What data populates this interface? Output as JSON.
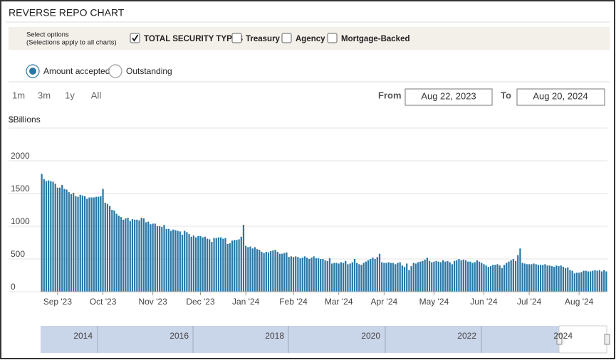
{
  "header": {
    "title": "REVERSE REPO CHART"
  },
  "options": {
    "prompt": "Select options",
    "note": "(Selections apply to all charts)",
    "checkboxes": [
      {
        "label": "TOTAL SECURITY TYPES",
        "checked": true
      },
      {
        "label": "Treasury",
        "checked": false
      },
      {
        "label": "Agency",
        "checked": false
      },
      {
        "label": "Mortgage-Backed",
        "checked": false
      }
    ]
  },
  "radios": [
    {
      "label": "Amount accepted",
      "selected": true
    },
    {
      "label": "Outstanding",
      "selected": false
    }
  ],
  "zoom": [
    "1m",
    "3m",
    "1y",
    "All"
  ],
  "range": {
    "from_label": "From",
    "from": "Aug 22, 2023",
    "to_label": "To",
    "to": "Aug 20, 2024"
  },
  "chart_data": {
    "type": "bar",
    "y_label": "$Billions",
    "color": "#2a77a5",
    "ylim": [
      0,
      2500
    ],
    "yticks": [
      0,
      500,
      1000,
      1500,
      2000
    ],
    "grid": true,
    "categories": [
      null,
      null,
      null,
      null,
      null,
      null,
      null,
      "Sep '23",
      null,
      null,
      null,
      null,
      null,
      null,
      null,
      null,
      null,
      null,
      null,
      null,
      null,
      null,
      null,
      null,
      null,
      null,
      null,
      "Oct '23",
      null,
      null,
      null,
      null,
      null,
      null,
      null,
      null,
      null,
      null,
      null,
      null,
      null,
      null,
      null,
      null,
      null,
      null,
      null,
      null,
      null,
      "Nov '23",
      null,
      null,
      null,
      null,
      null,
      null,
      null,
      null,
      null,
      null,
      null,
      null,
      null,
      null,
      null,
      null,
      null,
      null,
      null,
      null,
      "Dec '23",
      null,
      null,
      null,
      null,
      null,
      null,
      null,
      null,
      null,
      null,
      null,
      null,
      null,
      null,
      null,
      null,
      null,
      null,
      null,
      "Jan '24",
      null,
      null,
      null,
      null,
      null,
      null,
      null,
      null,
      null,
      null,
      null,
      null,
      null,
      null,
      null,
      null,
      null,
      null,
      null,
      null,
      "Feb '24",
      null,
      null,
      null,
      null,
      null,
      null,
      null,
      null,
      null,
      null,
      null,
      null,
      null,
      null,
      null,
      null,
      null,
      null,
      null,
      "Mar '24",
      null,
      null,
      null,
      null,
      null,
      null,
      null,
      null,
      null,
      null,
      null,
      null,
      null,
      null,
      null,
      null,
      null,
      null,
      null,
      "Apr '24",
      null,
      null,
      null,
      null,
      null,
      null,
      null,
      null,
      null,
      null,
      null,
      null,
      null,
      null,
      null,
      null,
      null,
      null,
      null,
      null,
      null,
      "May '24",
      null,
      null,
      null,
      null,
      null,
      null,
      null,
      null,
      null,
      null,
      null,
      null,
      null,
      null,
      null,
      null,
      null,
      null,
      null,
      null,
      null,
      "Jun '24",
      null,
      null,
      null,
      null,
      null,
      null,
      null,
      null,
      null,
      null,
      null,
      null,
      null,
      null,
      null,
      null,
      null,
      null,
      null,
      "Jul '24",
      null,
      null,
      null,
      null,
      null,
      null,
      null,
      null,
      null,
      null,
      null,
      null,
      null,
      null,
      null,
      null,
      null,
      null,
      null,
      null,
      null,
      "Aug '24",
      null,
      null,
      null,
      null,
      null,
      null,
      null,
      null,
      null,
      null,
      null,
      null
    ],
    "values": [
      1800,
      1720,
      1690,
      1700,
      1690,
      1680,
      1650,
      1590,
      1590,
      1630,
      1570,
      1560,
      1520,
      1490,
      1510,
      1460,
      1450,
      1480,
      1470,
      1460,
      1420,
      1440,
      1440,
      1440,
      1450,
      1450,
      1460,
      1570,
      1360,
      1340,
      1310,
      1250,
      1240,
      1190,
      1160,
      1140,
      1100,
      1120,
      1130,
      1080,
      1110,
      1100,
      1100,
      1090,
      1130,
      1120,
      1060,
      1070,
      1030,
      1040,
      1040,
      1000,
      1000,
      990,
      1020,
      960,
      960,
      930,
      950,
      940,
      930,
      920,
      870,
      930,
      910,
      880,
      840,
      860,
      830,
      850,
      850,
      830,
      840,
      810,
      800,
      760,
      820,
      820,
      830,
      830,
      810,
      820,
      730,
      740,
      780,
      790,
      790,
      800,
      840,
      1020,
      700,
      680,
      690,
      660,
      680,
      650,
      640,
      610,
      590,
      610,
      600,
      620,
      630,
      640,
      610,
      580,
      580,
      590,
      600,
      530,
      540,
      530,
      540,
      530,
      510,
      520,
      540,
      520,
      500,
      520,
      540,
      510,
      510,
      500,
      500,
      480,
      470,
      510,
      430,
      440,
      440,
      430,
      450,
      440,
      470,
      420,
      430,
      450,
      500,
      440,
      420,
      410,
      440,
      460,
      480,
      500,
      520,
      500,
      530,
      580,
      450,
      440,
      440,
      450,
      440,
      440,
      420,
      440,
      450,
      400,
      380,
      430,
      330,
      390,
      440,
      430,
      450,
      460,
      470,
      490,
      520,
      470,
      450,
      460,
      470,
      460,
      450,
      480,
      460,
      470,
      450,
      420,
      470,
      480,
      500,
      480,
      490,
      480,
      460,
      460,
      440,
      450,
      480,
      460,
      440,
      420,
      400,
      380,
      390,
      410,
      410,
      420,
      400,
      360,
      410,
      440,
      460,
      480,
      500,
      470,
      560,
      660,
      440,
      430,
      420,
      420,
      420,
      430,
      420,
      410,
      410,
      410,
      420,
      400,
      400,
      390,
      380,
      400,
      390,
      400,
      380,
      360,
      370,
      330,
      320,
      280,
      290,
      290,
      300,
      320,
      320,
      310,
      310,
      320,
      330,
      320,
      330,
      310,
      330,
      310
    ]
  },
  "navigator": {
    "labels": [
      "2014",
      "2016",
      "2018",
      "2020",
      "2022",
      "2024"
    ]
  }
}
